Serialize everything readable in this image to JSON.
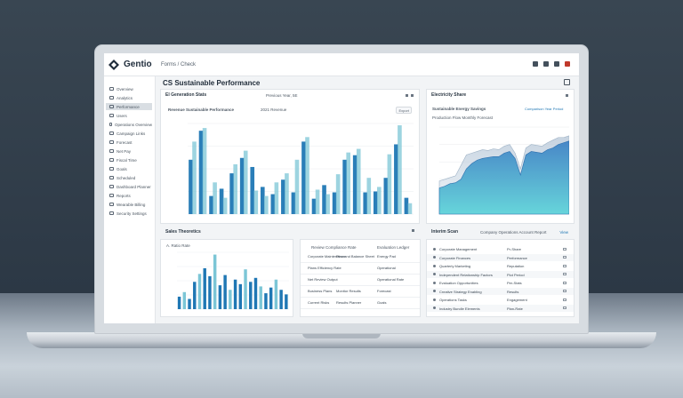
{
  "app": {
    "name": "Gentio",
    "breadcrumb": "Forms / Check"
  },
  "page": {
    "title": "CS  Sustainable Performance"
  },
  "sidebar": {
    "items": [
      {
        "label": "Overview",
        "active": false
      },
      {
        "label": "Analytics",
        "active": false
      },
      {
        "label": "Performance",
        "active": true
      },
      {
        "label": "Users",
        "active": false
      },
      {
        "label": "Operations Overview",
        "active": false
      },
      {
        "label": "Campaign Links",
        "active": false
      },
      {
        "label": "Forecast",
        "active": false
      },
      {
        "label": "Net Pay",
        "active": false
      },
      {
        "label": "Fiscal Time",
        "active": false
      },
      {
        "label": "Goals",
        "active": false
      },
      {
        "label": "Scheduled",
        "active": false
      },
      {
        "label": "Dashboard Planner",
        "active": false
      },
      {
        "label": "Reports",
        "active": false
      },
      {
        "label": "Wearable Billing",
        "active": false
      },
      {
        "label": "Security Settings",
        "active": false
      }
    ]
  },
  "panels": {
    "main_chart": {
      "title": "El Generation Stats",
      "filter": "Previous Year, 5E",
      "subtitle": "Revenue Sustainable Performance",
      "legend": "2021 Revenue",
      "export": "Export"
    },
    "area_chart": {
      "title": "Electricity Share",
      "subtitle": "Sustainable Energy Savings",
      "legend": "Comparison Year Period",
      "subtitle2": "Production Flow Monthly Forecast"
    },
    "small_bars": {
      "title": "Sales Theoretics",
      "subtitle": "A. Ratio Rate"
    },
    "middle_list": {
      "header_left": "Review Compliance Rate",
      "header_right": "Evaluation Ledger",
      "rows": [
        {
          "a": "Corporate Maintenance",
          "b": "Plan and Balance Sheet",
          "c": "Energy Pad"
        },
        {
          "a": "Plans Efficiency Rate",
          "b": "",
          "c": "Operational"
        },
        {
          "a": "Net Review Output",
          "b": "",
          "c": "Operational Rate"
        },
        {
          "a": "Business Plans",
          "b": "Monitor Results",
          "c": "Forecast"
        },
        {
          "a": "Current Risks",
          "b": "Results Planner",
          "c": "Goals"
        }
      ]
    },
    "table": {
      "title": "Interim Scan",
      "title2": "Company Operations Account Report",
      "tag": "View",
      "rows": [
        {
          "name": "Corporate Management",
          "val": "Pr-Share",
          "c": ""
        },
        {
          "name": "Corporate Finances",
          "val": "Performance",
          "c": ""
        },
        {
          "name": "Quarterly Marketing",
          "val": "Reputation",
          "c": ""
        },
        {
          "name": "Independent Relationship Factors",
          "val": "Plot Period",
          "c": ""
        },
        {
          "name": "Evaluation Opportunities",
          "val": "Per-Stats",
          "c": ""
        },
        {
          "name": "Creative Strategy Enabling",
          "val": "Results",
          "c": ""
        },
        {
          "name": "Operations Tasks",
          "val": "Engagement",
          "c": ""
        },
        {
          "name": "Industry Bundle Elements",
          "val": "Plan-Rate",
          "c": ""
        }
      ]
    }
  },
  "chart_data": [
    {
      "type": "bar",
      "series": [
        {
          "name": "",
          "color": "#1f77b4",
          "values": [
            60,
            92,
            20,
            28,
            45,
            62,
            52,
            30,
            22,
            38,
            24,
            80,
            17,
            32,
            24,
            60,
            65,
            24,
            25,
            40,
            77,
            18
          ]
        },
        {
          "name": "",
          "color": "#7cc6d6",
          "values": [
            80,
            95,
            35,
            18,
            55,
            70,
            26,
            20,
            35,
            45,
            60,
            85,
            27,
            22,
            44,
            68,
            72,
            40,
            30,
            66,
            98,
            12
          ]
        }
      ],
      "ylim": [
        0,
        100
      ]
    },
    {
      "type": "area",
      "series": [
        {
          "name": "",
          "values": [
            38,
            40,
            42,
            44,
            56,
            68,
            70,
            72,
            74,
            73,
            75,
            74,
            78,
            80,
            70,
            52,
            76,
            80,
            79,
            78,
            82,
            85,
            88,
            88,
            90
          ]
        },
        {
          "name": "",
          "values": [
            30,
            32,
            35,
            36,
            40,
            52,
            58,
            62,
            64,
            65,
            66,
            66,
            70,
            72,
            64,
            45,
            68,
            72,
            71,
            70,
            74,
            76,
            80,
            82,
            84
          ]
        }
      ],
      "ylim": [
        0,
        100
      ]
    },
    {
      "type": "bar",
      "values": [
        22,
        30,
        18,
        48,
        62,
        72,
        58,
        96,
        42,
        60,
        34,
        52,
        44,
        70,
        48,
        55,
        40,
        28,
        38,
        52,
        34,
        26
      ],
      "ylim": [
        0,
        100
      ]
    }
  ],
  "colors": {
    "accent": "#1f77b4",
    "accent_light": "#7cc6d6",
    "bg": "#f2f4f6"
  }
}
